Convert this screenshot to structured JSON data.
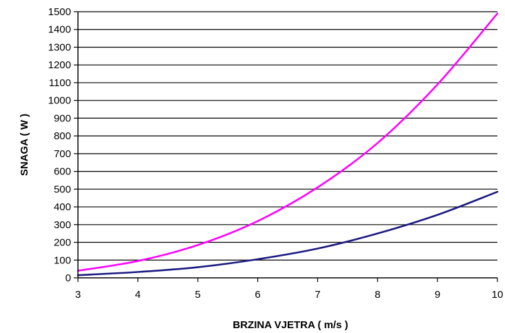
{
  "chart_data": {
    "type": "line",
    "title": "",
    "xlabel": "BRZINA VJETRA ( m/s )",
    "ylabel": "SNAGA ( W )",
    "xlim": [
      3,
      10
    ],
    "ylim": [
      0,
      1500
    ],
    "x_ticks": [
      3,
      4,
      5,
      6,
      7,
      8,
      9,
      10
    ],
    "y_ticks": [
      0,
      100,
      200,
      300,
      400,
      500,
      600,
      700,
      800,
      900,
      1000,
      1100,
      1200,
      1300,
      1400,
      1500
    ],
    "grid": "horizontal",
    "legend": "none",
    "x": [
      3,
      4,
      5,
      6,
      7,
      8,
      9,
      10
    ],
    "series": [
      {
        "color": "#ff00ff",
        "values": [
          40,
          95,
          185,
          320,
          510,
          760,
          1090,
          1490
        ]
      },
      {
        "color": "#1a1a80",
        "values": [
          15,
          33,
          60,
          105,
          165,
          250,
          355,
          485
        ]
      }
    ]
  }
}
